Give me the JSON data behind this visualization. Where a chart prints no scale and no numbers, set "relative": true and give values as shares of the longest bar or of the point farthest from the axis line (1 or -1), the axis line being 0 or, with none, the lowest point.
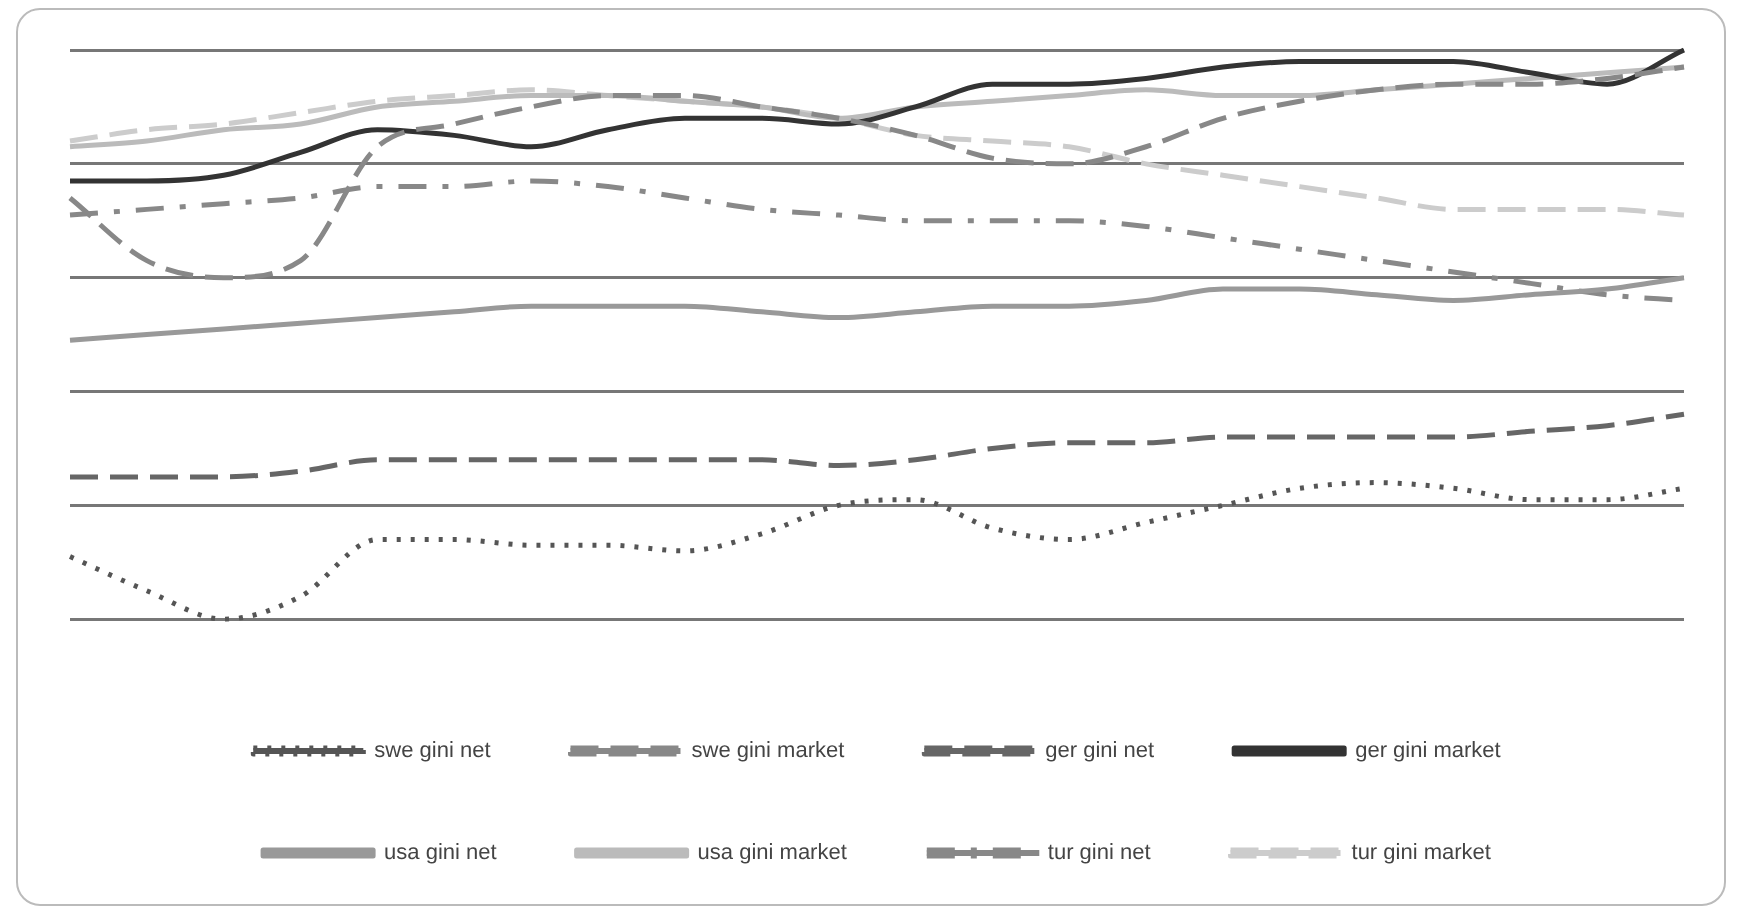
{
  "chart_data": {
    "type": "line",
    "relative": true,
    "grid": "y",
    "legend": "bottom",
    "marker": "none",
    "categories": [
      null,
      null,
      null,
      null,
      null,
      null,
      null,
      null,
      null,
      null,
      null,
      null,
      null,
      null,
      null,
      null,
      null,
      null,
      null,
      null,
      null,
      null
    ],
    "series": [
      {
        "name": "swe gini net",
        "color": "#555555",
        "line_style": "dotted",
        "values": [
          0.11,
          0.05,
          0,
          0.04,
          0.14,
          0.14,
          0.13,
          0.13,
          0.12,
          0.15,
          0.2,
          0.21,
          0.16,
          0.14,
          0.17,
          0.2,
          0.23,
          0.24,
          0.23,
          0.21,
          0.21,
          0.23
        ]
      },
      {
        "name": "swe gini market",
        "color": "#888888",
        "line_style": "dashed",
        "values": [
          0.74,
          0.63,
          0.6,
          0.63,
          0.83,
          0.87,
          0.9,
          0.92,
          0.92,
          0.9,
          0.88,
          0.85,
          0.81,
          0.8,
          0.83,
          0.88,
          0.91,
          0.93,
          0.94,
          0.94,
          0.95,
          0.97
        ]
      },
      {
        "name": "ger gini net",
        "color": "#666666",
        "line_style": "dashed",
        "values": [
          0.25,
          0.25,
          0.25,
          0.26,
          0.28,
          0.28,
          0.28,
          0.28,
          0.28,
          0.28,
          0.27,
          0.28,
          0.3,
          0.31,
          0.31,
          0.32,
          0.32,
          0.32,
          0.32,
          0.33,
          0.34,
          0.36
        ]
      },
      {
        "name": "ger gini market",
        "color": "#333333",
        "line_style": "solid",
        "values": [
          0.77,
          0.77,
          0.78,
          0.82,
          0.86,
          0.85,
          0.83,
          0.86,
          0.88,
          0.88,
          0.87,
          0.9,
          0.94,
          0.94,
          0.95,
          0.97,
          0.98,
          0.98,
          0.98,
          0.96,
          0.94,
          1
        ]
      },
      {
        "name": "usa gini net",
        "color": "#999999",
        "line_style": "solid",
        "values": [
          0.49,
          0.5,
          0.51,
          0.52,
          0.53,
          0.54,
          0.55,
          0.55,
          0.55,
          0.54,
          0.53,
          0.54,
          0.55,
          0.55,
          0.56,
          0.58,
          0.58,
          0.57,
          0.56,
          0.57,
          0.58,
          0.6
        ]
      },
      {
        "name": "usa gini market",
        "color": "#bbbbbb",
        "line_style": "solid",
        "values": [
          0.83,
          0.84,
          0.86,
          0.87,
          0.9,
          0.91,
          0.92,
          0.92,
          0.91,
          0.9,
          0.88,
          0.9,
          0.91,
          0.92,
          0.93,
          0.92,
          0.92,
          0.93,
          0.94,
          0.95,
          0.96,
          0.97
        ]
      },
      {
        "name": "tur gini net",
        "color": "#888888",
        "line_style": "dashdot",
        "values": [
          0.71,
          0.72,
          0.73,
          0.74,
          0.76,
          0.76,
          0.77,
          0.76,
          0.74,
          0.72,
          0.71,
          0.7,
          0.7,
          0.7,
          0.69,
          0.67,
          0.65,
          0.63,
          0.61,
          0.59,
          0.57,
          0.56
        ]
      },
      {
        "name": "tur gini market",
        "color": "#cccccc",
        "line_style": "dashed",
        "values": [
          0.84,
          0.86,
          0.87,
          0.89,
          0.91,
          0.92,
          0.93,
          0.92,
          0.91,
          0.9,
          0.88,
          0.85,
          0.84,
          0.83,
          0.8,
          0.78,
          0.76,
          0.74,
          0.72,
          0.72,
          0.72,
          0.71
        ]
      }
    ]
  }
}
